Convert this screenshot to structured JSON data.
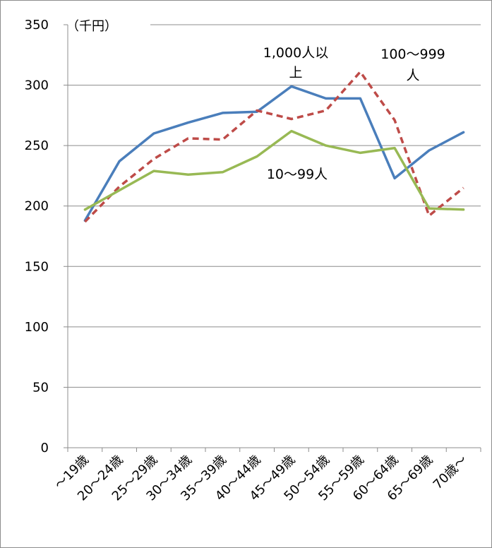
{
  "chart_data": {
    "type": "line",
    "unit_label": "（千円）",
    "ylim": [
      0,
      350
    ],
    "yticks": [
      0,
      50,
      100,
      150,
      200,
      250,
      300,
      350
    ],
    "grid": true,
    "categories": [
      "〜19歳",
      "20〜24歳",
      "25〜29歳",
      "30〜34歳",
      "35〜39歳",
      "40〜44歳",
      "45〜49歳",
      "50〜54歳",
      "55〜59歳",
      "60〜64歳",
      "65〜69歳",
      "70歳〜"
    ],
    "series": [
      {
        "name": "1,000人以上",
        "label_lines": [
          "1,000人以",
          "上"
        ],
        "color": "#4a7ebb",
        "style": "solid",
        "values": [
          188,
          237,
          260,
          269,
          277,
          278,
          299,
          289,
          289,
          223,
          246,
          261
        ]
      },
      {
        "name": "100〜999人",
        "label_lines": [
          "100〜999",
          "人"
        ],
        "color": "#be4b48",
        "style": "dashed",
        "values": [
          187,
          216,
          239,
          256,
          255,
          279,
          272,
          279,
          311,
          271,
          192,
          215
        ]
      },
      {
        "name": "10〜99人",
        "label_lines": [
          "10〜99人"
        ],
        "color": "#98b954",
        "style": "solid",
        "values": [
          197,
          213,
          229,
          226,
          228,
          241,
          262,
          250,
          244,
          248,
          198,
          197
        ]
      }
    ]
  }
}
